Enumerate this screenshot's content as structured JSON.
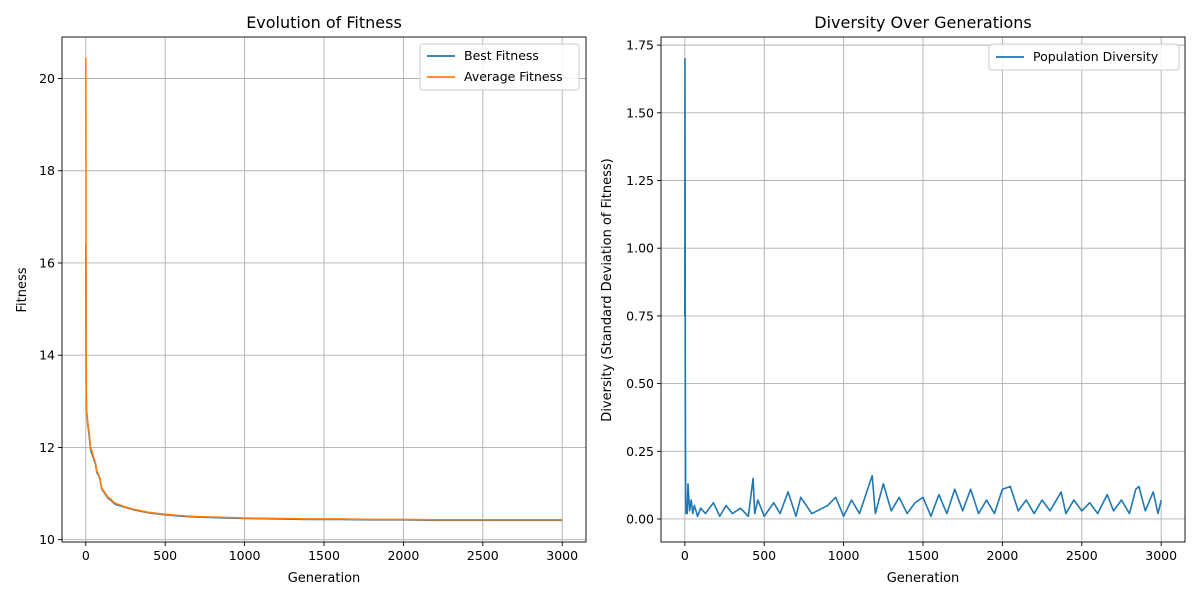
{
  "chart_data": [
    {
      "type": "line",
      "title": "Evolution of Fitness",
      "xlabel": "Generation",
      "ylabel": "Fitness",
      "xlim": [
        -150,
        3150
      ],
      "ylim": [
        9.95,
        20.9
      ],
      "xticks": [
        0,
        500,
        1000,
        1500,
        2000,
        2500,
        3000
      ],
      "yticks": [
        10,
        12,
        14,
        16,
        18,
        20
      ],
      "grid": true,
      "legend_position": "top-right",
      "series": [
        {
          "name": "Best Fitness",
          "color": "#1f77b4",
          "x": [
            0,
            1,
            2,
            3,
            5,
            8,
            12,
            20,
            30,
            40,
            50,
            60,
            70,
            80,
            90,
            100,
            120,
            140,
            160,
            180,
            200,
            250,
            300,
            400,
            500,
            600,
            700,
            800,
            900,
            1000,
            1200,
            1400,
            1600,
            1800,
            2000,
            2200,
            2400,
            2600,
            2800,
            3000
          ],
          "values": [
            16.4,
            14.8,
            13.5,
            12.9,
            12.75,
            12.65,
            12.5,
            12.3,
            11.95,
            11.85,
            11.75,
            11.65,
            11.45,
            11.4,
            11.3,
            11.1,
            11.0,
            10.9,
            10.85,
            10.78,
            10.75,
            10.7,
            10.65,
            10.58,
            10.54,
            10.51,
            10.49,
            10.48,
            10.47,
            10.46,
            10.45,
            10.44,
            10.44,
            10.43,
            10.43,
            10.42,
            10.42,
            10.42,
            10.42,
            10.42
          ]
        },
        {
          "name": "Average Fitness",
          "color": "#ff7f0e",
          "x": [
            0,
            1,
            2,
            3,
            5,
            8,
            12,
            20,
            30,
            40,
            50,
            60,
            70,
            80,
            90,
            100,
            120,
            140,
            160,
            180,
            200,
            250,
            300,
            400,
            500,
            600,
            700,
            800,
            900,
            1000,
            1200,
            1400,
            1600,
            1800,
            2000,
            2200,
            2400,
            2600,
            2800,
            3000
          ],
          "values": [
            20.45,
            17.0,
            14.5,
            13.2,
            12.8,
            12.7,
            12.55,
            12.35,
            12.0,
            11.9,
            11.78,
            11.68,
            11.48,
            11.42,
            11.32,
            11.12,
            11.02,
            10.92,
            10.87,
            10.8,
            10.77,
            10.71,
            10.66,
            10.59,
            10.55,
            10.52,
            10.5,
            10.49,
            10.48,
            10.47,
            10.46,
            10.45,
            10.45,
            10.44,
            10.44,
            10.43,
            10.43,
            10.43,
            10.43,
            10.43
          ]
        }
      ]
    },
    {
      "type": "line",
      "title": "Diversity Over Generations",
      "xlabel": "Generation",
      "ylabel": "Diversity (Standard Deviation of Fitness)",
      "xlim": [
        -150,
        3150
      ],
      "ylim": [
        -0.085,
        1.78
      ],
      "xticks": [
        0,
        500,
        1000,
        1500,
        2000,
        2500,
        3000
      ],
      "yticks": [
        0.0,
        0.25,
        0.5,
        0.75,
        1.0,
        1.25,
        1.5,
        1.75
      ],
      "grid": true,
      "legend_position": "top-right",
      "series": [
        {
          "name": "Population Diversity",
          "color": "#1f77b4",
          "x": [
            0,
            1,
            2,
            3,
            4,
            5,
            6,
            7,
            8,
            10,
            15,
            20,
            30,
            40,
            50,
            60,
            80,
            100,
            130,
            180,
            220,
            260,
            300,
            350,
            400,
            430,
            440,
            460,
            500,
            560,
            600,
            650,
            700,
            730,
            800,
            900,
            950,
            1000,
            1050,
            1100,
            1180,
            1200,
            1250,
            1300,
            1350,
            1400,
            1450,
            1500,
            1550,
            1600,
            1650,
            1700,
            1750,
            1800,
            1850,
            1900,
            1950,
            2000,
            2050,
            2100,
            2150,
            2200,
            2250,
            2300,
            2370,
            2400,
            2450,
            2500,
            2550,
            2600,
            2660,
            2700,
            2750,
            2800,
            2840,
            2860,
            2900,
            2950,
            2980,
            3000
          ],
          "values": [
            0.75,
            1.7,
            1.2,
            0.6,
            0.3,
            0.15,
            0.06,
            0.03,
            0.02,
            0.05,
            0.02,
            0.13,
            0.03,
            0.07,
            0.02,
            0.05,
            0.01,
            0.04,
            0.02,
            0.06,
            0.01,
            0.05,
            0.02,
            0.04,
            0.01,
            0.15,
            0.02,
            0.07,
            0.01,
            0.06,
            0.02,
            0.1,
            0.01,
            0.08,
            0.02,
            0.05,
            0.08,
            0.01,
            0.07,
            0.02,
            0.16,
            0.02,
            0.13,
            0.03,
            0.08,
            0.02,
            0.06,
            0.08,
            0.01,
            0.09,
            0.02,
            0.11,
            0.03,
            0.11,
            0.02,
            0.07,
            0.02,
            0.11,
            0.12,
            0.03,
            0.07,
            0.02,
            0.07,
            0.03,
            0.1,
            0.02,
            0.07,
            0.03,
            0.06,
            0.02,
            0.09,
            0.03,
            0.07,
            0.02,
            0.11,
            0.12,
            0.03,
            0.1,
            0.02,
            0.07
          ]
        }
      ]
    }
  ]
}
